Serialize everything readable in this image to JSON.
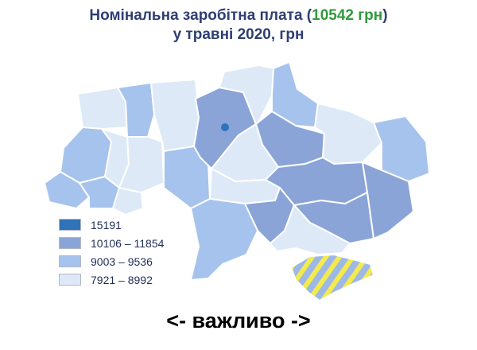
{
  "title": {
    "line1_prefix": "Номінальна заробітна плата (",
    "line1_highlight": "10542 грн",
    "line1_suffix": ")",
    "line2": "у травні 2020, грн"
  },
  "legend": [
    {
      "label": "15191",
      "color": "#2f73b9"
    },
    {
      "label": "10106 – 11854",
      "color": "#8aa4d8"
    },
    {
      "label": "9003 – 9536",
      "color": "#a5c3ec"
    },
    {
      "label": "7921 – 8992",
      "color": "#dde9f6"
    }
  ],
  "colors": {
    "title": "#2e3f73",
    "highlight": "#2f9a3c",
    "border": "#ffffff",
    "crimea_stripe_blue": "#9db8e6",
    "crimea_stripe_yellow": "#f3ea4d"
  },
  "footer_text": "<- важливо ->"
}
